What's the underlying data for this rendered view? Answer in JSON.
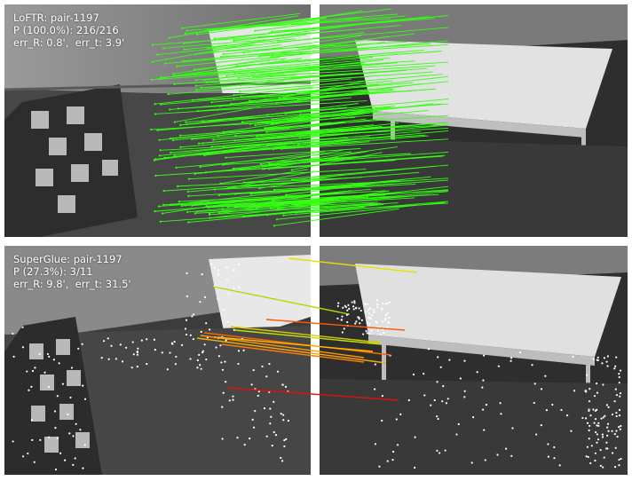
{
  "top": {
    "method": "LoFTR: pair-1197",
    "precision": "P (100.0%): 216/216",
    "errors": "err_R: 0.8',  err_t: 3.9'",
    "match_color": "#33ff11"
  },
  "bottom": {
    "method": "SuperGlue: pair-1197",
    "precision": "P (27.3%): 3/11",
    "errors": "err_R: 9.8',  err_t: 31.5'",
    "keypoint_color": "#ffffff"
  },
  "colors": {
    "floor": "#3a3a3a",
    "wall": "#8a8a8a",
    "table_top": "#dcdcdc",
    "sofa_dark": "#2c2c2c",
    "sofa_light": "#b5b5b5"
  }
}
